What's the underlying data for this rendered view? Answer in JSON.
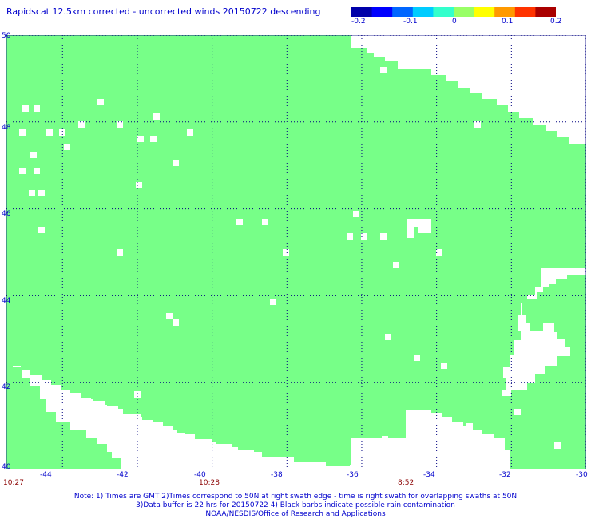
{
  "title": "Rapidscat 12.5km corrected - uncorrected winds 20150722 descending",
  "colorbar": {
    "colors": [
      "#0000aa",
      "#0000ff",
      "#0066ff",
      "#00ccff",
      "#33ffcc",
      "#99ff66",
      "#ffff00",
      "#ff9900",
      "#ff3300",
      "#aa0000"
    ],
    "ticks": [
      "-0.2",
      "-0.1",
      "0",
      "0.1",
      "0.2"
    ]
  },
  "map": {
    "lon_range": [
      -45.5,
      -30
    ],
    "lat_range": [
      40,
      50
    ],
    "lon_ticks": [
      "-44",
      "-42",
      "-40",
      "-38",
      "-36",
      "-34",
      "-32",
      "-30"
    ],
    "lat_ticks": [
      "50",
      "48",
      "46",
      "44",
      "42",
      "40"
    ],
    "data_color": "#77ff88",
    "grid": true
  },
  "time_labels": [
    "10:27",
    "10:28",
    "8:52"
  ],
  "notes": [
    "Note: 1) Times are GMT 2)Times correspond to 50N at right swath edge - time is right swath for overlapping swaths at 50N",
    "3)Data buffer is 22 hrs for 20150722 4) Black barbs indicate possible rain contamination",
    "NOAA/NESDIS/Office of Research and Applications"
  ]
}
